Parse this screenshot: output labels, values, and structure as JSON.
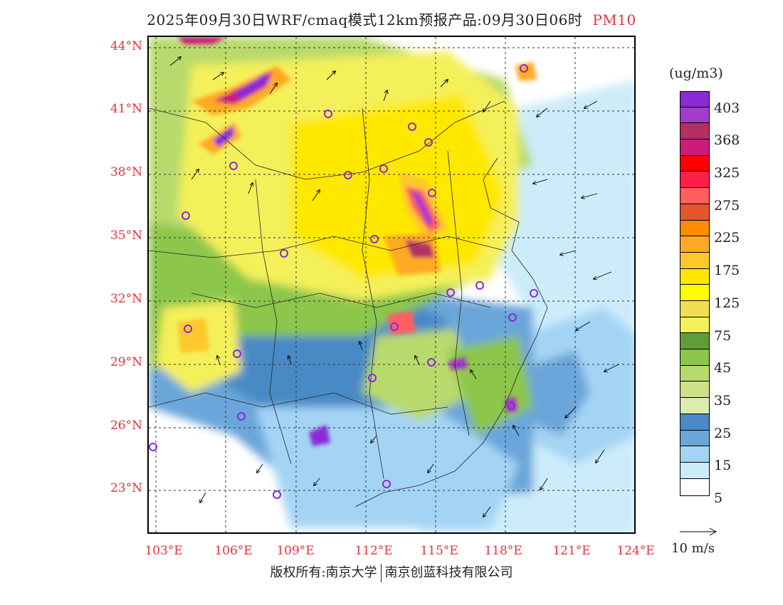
{
  "header": {
    "title": "2025年09月30日WRF/cmaq模式12km预报产品:09月30日06时",
    "pollutant": "PM10"
  },
  "map": {
    "lat_labels": [
      "44°N",
      "41°N",
      "38°N",
      "35°N",
      "32°N",
      "29°N",
      "26°N",
      "23°N"
    ],
    "lon_labels": [
      "103°E",
      "106°E",
      "109°E",
      "112°E",
      "115°E",
      "118°E",
      "121°E",
      "124°E"
    ],
    "label_color": "#e8313c"
  },
  "legend": {
    "unit": "(ug/m3)",
    "labels": [
      "403",
      "368",
      "325",
      "275",
      "225",
      "175",
      "125",
      "75",
      "45",
      "35",
      "25",
      "15",
      "5"
    ],
    "colors": [
      "#8b2ad6",
      "#a43bc9",
      "#b23064",
      "#cc1b7a",
      "#ff0000",
      "#ff1e4a",
      "#ff5f5f",
      "#e8552a",
      "#ff8c00",
      "#ffaa22",
      "#ffc82a",
      "#ffe800",
      "#ffff00",
      "#f0e050",
      "#f4f05a",
      "#5e9e3a",
      "#8cc64c",
      "#b8da6c",
      "#cde08a",
      "#ddeab0",
      "#4a8ac6",
      "#6aa6da",
      "#a4d4f4",
      "#ccecfa",
      "#ffffff"
    ]
  },
  "wind_scale": {
    "label": "10 m/s"
  },
  "footer": {
    "owner": "版权所有:南京大学",
    "company": "南京创蓝科技有限公司"
  }
}
